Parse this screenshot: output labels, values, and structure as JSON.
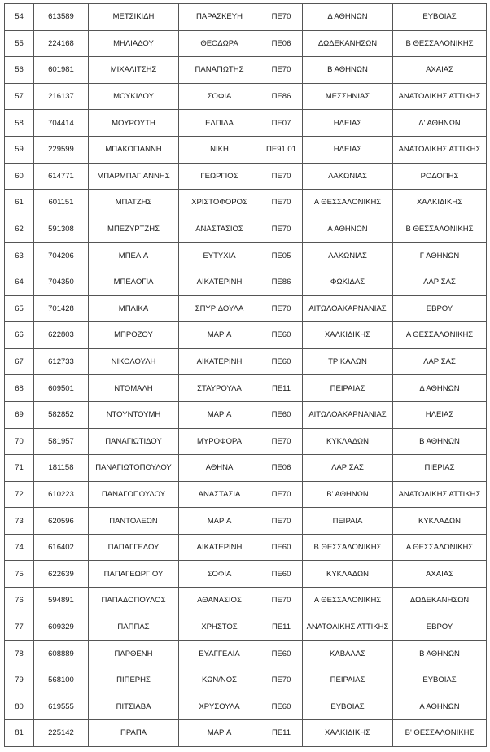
{
  "rows": [
    [
      "54",
      "613589",
      "ΜΕΤΣΙΚΙΔΗ",
      "ΠΑΡΑΣΚΕΥΗ",
      "ΠΕ70",
      "Δ ΑΘΗΝΩΝ",
      "ΕΥΒΟΙΑΣ"
    ],
    [
      "55",
      "224168",
      "ΜΗΛΙΑΔΟΥ",
      "ΘΕΟΔΩΡΑ",
      "ΠΕ06",
      "ΔΩΔΕΚΑΝΗΣΩΝ",
      "Β ΘΕΣΣΑΛΟΝΙΚΗΣ"
    ],
    [
      "56",
      "601981",
      "ΜΙΧΑΛΙΤΣΗΣ",
      "ΠΑΝΑΓΙΩΤΗΣ",
      "ΠΕ70",
      "Β ΑΘΗΝΩΝ",
      "ΑΧΑΙΑΣ"
    ],
    [
      "57",
      "216137",
      "ΜΟΥΚΙΔΟΥ",
      "ΣΟΦΙΑ",
      "ΠΕ86",
      "ΜΕΣΣΗΝΙΑΣ",
      "ΑΝΑΤΟΛΙΚΗΣ ΑΤΤΙΚΗΣ"
    ],
    [
      "58",
      "704414",
      "ΜΟΥΡΟΥΤΗ",
      "ΕΛΠΙΔΑ",
      "ΠΕ07",
      "ΗΛΕΙΑΣ",
      "Δ' ΑΘΗΝΩΝ"
    ],
    [
      "59",
      "229599",
      "ΜΠΑΚΟΓΙΑΝΝΗ",
      "ΝΙΚΗ",
      "ΠΕ91.01",
      "ΗΛΕΙΑΣ",
      "ΑΝΑΤΟΛΙΚΗΣ ΑΤΤΙΚΗΣ"
    ],
    [
      "60",
      "614771",
      "ΜΠΑΡΜΠΑΓΙΑΝΝΗΣ",
      "ΓΕΩΡΓΙΟΣ",
      "ΠΕ70",
      "ΛΑΚΩΝΙΑΣ",
      "ΡΟΔΟΠΗΣ"
    ],
    [
      "61",
      "601151",
      "ΜΠΑΤΖΗΣ",
      "ΧΡΙΣΤΟΦΟΡΟΣ",
      "ΠΕ70",
      "Α ΘΕΣΣΑΛΟΝΙΚΗΣ",
      "ΧΑΛΚΙΔΙΚΗΣ"
    ],
    [
      "62",
      "591308",
      "ΜΠΕΖΥΡΤΖΗΣ",
      "ΑΝΑΣΤΑΣΙΟΣ",
      "ΠΕ70",
      "Α ΑΘΗΝΩΝ",
      "Β ΘΕΣΣΑΛΟΝΙΚΗΣ"
    ],
    [
      "63",
      "704206",
      "ΜΠΕΛΙΑ",
      "ΕΥΤΥΧΙΑ",
      "ΠΕ05",
      "ΛΑΚΩΝΙΑΣ",
      "Γ ΑΘΗΝΩΝ"
    ],
    [
      "64",
      "704350",
      "ΜΠΕΛΟΓΙΑ",
      "ΑΙΚΑΤΕΡΙΝΗ",
      "ΠΕ86",
      "ΦΩΚΙΔΑΣ",
      "ΛΑΡΙΣΑΣ"
    ],
    [
      "65",
      "701428",
      "ΜΠΛΙΚΑ",
      "ΣΠΥΡΙΔΟΥΛΑ",
      "ΠΕ70",
      "ΑΙΤΩΛΟΑΚΑΡΝΑΝΙΑΣ",
      "ΕΒΡΟΥ"
    ],
    [
      "66",
      "622803",
      "ΜΠΡΟΖΟΥ",
      "ΜΑΡΙΑ",
      "ΠΕ60",
      "ΧΑΛΚΙΔΙΚΗΣ",
      "Α ΘΕΣΣΑΛΟΝΙΚΗΣ"
    ],
    [
      "67",
      "612733",
      "ΝΙΚΟΛΟΥΛΗ",
      "ΑΙΚΑΤΕΡΙΝΗ",
      "ΠΕ60",
      "ΤΡΙΚΑΛΩΝ",
      "ΛΑΡΙΣΑΣ"
    ],
    [
      "68",
      "609501",
      "ΝΤΟΜΑΛΗ",
      "ΣΤΑΥΡΟΥΛΑ",
      "ΠΕ11",
      "ΠΕΙΡΑΙΑΣ",
      "Δ ΑΘΗΝΩΝ"
    ],
    [
      "69",
      "582852",
      "ΝΤΟΥΝΤΟΥΜΗ",
      "ΜΑΡΙΑ",
      "ΠΕ60",
      "ΑΙΤΩΛΟΑΚΑΡΝΑΝΙΑΣ",
      "ΗΛΕΙΑΣ"
    ],
    [
      "70",
      "581957",
      "ΠΑΝΑΓΙΩΤΙΔΟΥ",
      "ΜΥΡΟΦΟΡΑ",
      "ΠΕ70",
      "ΚΥΚΛΑΔΩΝ",
      "Β ΑΘΗΝΩΝ"
    ],
    [
      "71",
      "181158",
      "ΠΑΝΑΓΙΩΤΟΠΟΥΛΟΥ",
      "ΑΘΗΝΑ",
      "ΠΕ06",
      "ΛΑΡΙΣΑΣ",
      "ΠΙΕΡΙΑΣ"
    ],
    [
      "72",
      "610223",
      "ΠΑΝΑΓΟΠΟΥΛΟΥ",
      "ΑΝΑΣΤΑΣΙΑ",
      "ΠΕ70",
      "Β' ΑΘΗΝΩΝ",
      "ΑΝΑΤΟΛΙΚΗΣ ΑΤΤΙΚΗΣ"
    ],
    [
      "73",
      "620596",
      "ΠΑΝΤΟΛΕΩΝ",
      "ΜΑΡΙΑ",
      "ΠΕ70",
      "ΠΕΙΡΑΙΑ",
      "ΚΥΚΛΑΔΩΝ"
    ],
    [
      "74",
      "616402",
      "ΠΑΠΑΓΓΕΛΟΥ",
      "ΑΙΚΑΤΕΡΙΝΗ",
      "ΠΕ60",
      "Β ΘΕΣΣΑΛΟΝΙΚΗΣ",
      "Α ΘΕΣΣΑΛΟΝΙΚΗΣ"
    ],
    [
      "75",
      "622639",
      "ΠΑΠΑΓΕΩΡΓΙΟΥ",
      "ΣΟΦΙΑ",
      "ΠΕ60",
      "ΚΥΚΛΑΔΩΝ",
      "ΑΧΑΙΑΣ"
    ],
    [
      "76",
      "594891",
      "ΠΑΠΑΔΟΠΟΥΛΟΣ",
      "ΑΘΑΝΑΣΙΟΣ",
      "ΠΕ70",
      "Α ΘΕΣΣΑΛΟΝΙΚΗΣ",
      "ΔΩΔΕΚΑΝΗΣΩΝ"
    ],
    [
      "77",
      "609329",
      "ΠΑΠΠΑΣ",
      "ΧΡΗΣΤΟΣ",
      "ΠΕ11",
      "ΑΝΑΤΟΛΙΚΗΣ ΑΤΤΙΚΗΣ",
      "ΕΒΡΟΥ"
    ],
    [
      "78",
      "608889",
      "ΠΑΡΘΕΝΗ",
      "ΕΥΑΓΓΕΛΙΑ",
      "ΠΕ60",
      "ΚΑΒΑΛΑΣ",
      "Β  ΑΘΗΝΩΝ"
    ],
    [
      "79",
      "568100",
      "ΠΙΠΕΡΗΣ",
      "ΚΩΝ/ΝΟΣ",
      "ΠΕ70",
      "ΠΕΙΡΑΙΑΣ",
      "ΕΥΒΟΙΑΣ"
    ],
    [
      "80",
      "619555",
      "ΠΙΤΣΙΑΒΑ",
      "ΧΡΥΣΟΥΛΑ",
      "ΠΕ60",
      "ΕΥΒΟΙΑΣ",
      "Α ΑΘΗΝΩΝ"
    ],
    [
      "81",
      "225142",
      "ΠΡΑΠΑ",
      "ΜΑΡΙΑ",
      "ΠΕ11",
      "ΧΑΛΚΙΔΙΚΗΣ",
      "Β' ΘΕΣΣΑΛΟΝΙΚΗΣ"
    ]
  ]
}
